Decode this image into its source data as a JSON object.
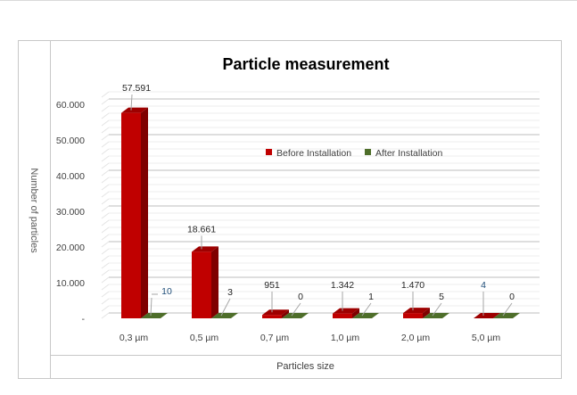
{
  "chart_data": {
    "type": "bar",
    "title": "Particle measurement",
    "xlabel": "Particles size",
    "ylabel": "Number of particles",
    "categories": [
      "0,3 µm",
      "0,5 µm",
      "0,7 µm",
      "1,0 µm",
      "2,0 µm",
      "5,0 µm"
    ],
    "series": [
      {
        "name": "Before Installation",
        "color": "#c00000",
        "values": [
          57591,
          18661,
          951,
          1342,
          1470,
          4
        ],
        "labels": [
          "57.591",
          "18.661",
          "951",
          "1.342",
          "1.470",
          "4"
        ]
      },
      {
        "name": "After Installation",
        "color": "#4e6e2a",
        "values": [
          10,
          3,
          0,
          1,
          5,
          0
        ],
        "labels": [
          "10",
          "3",
          "0",
          "1",
          "5",
          "0"
        ]
      }
    ],
    "yticks": [
      "-",
      "10.000",
      "20.000",
      "30.000",
      "40.000",
      "50.000",
      "60.000"
    ],
    "ylim": [
      0,
      62000
    ],
    "grid": true,
    "three_d": true,
    "legend": "inside-top-right"
  }
}
